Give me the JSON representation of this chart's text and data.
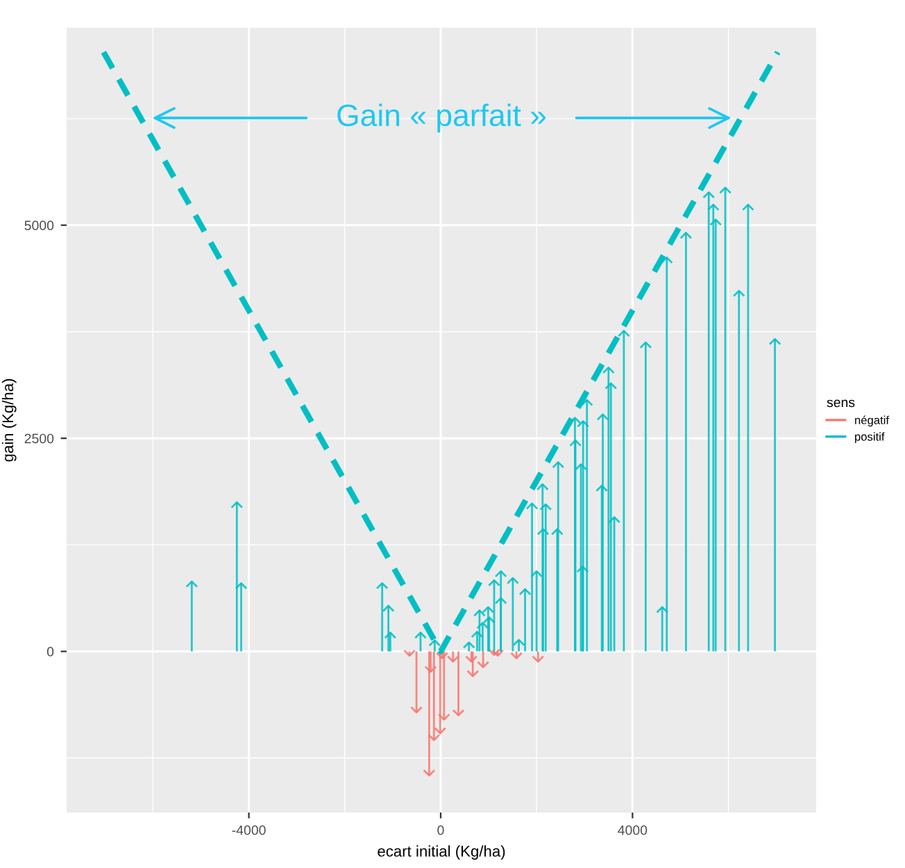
{
  "chart_data": {
    "type": "lollipop",
    "xlabel": "ecart initial (Kg/ha)",
    "ylabel": "gain (Kg/ha)",
    "legend_title": "sens",
    "annotations": [
      "Gain « parfait »"
    ],
    "xlim": [
      -7800,
      7830
    ],
    "ylim": [
      -1890,
      7316
    ],
    "xticks": [
      {
        "value": -6000,
        "label": null
      },
      -4000,
      {
        "value": -2000,
        "label": null
      },
      0,
      {
        "value": 2000,
        "label": null
      },
      4000,
      {
        "value": 6000,
        "label": null
      }
    ],
    "yticks": [
      {
        "value": -1250,
        "label": null
      },
      0,
      {
        "value": 1250,
        "label": null
      },
      2500,
      {
        "value": 3750,
        "label": null
      },
      5000,
      {
        "value": 6250,
        "label": null
      }
    ],
    "grid": true,
    "legend": "right",
    "series": [
      {
        "name": "négatif",
        "color": "#f8766d",
        "x": [
          -650,
          -505,
          -240,
          -210,
          -140,
          -10,
          30,
          70,
          257,
          370,
          640,
          670,
          885,
          1115,
          1190,
          1580,
          2030
        ],
        "values": [
          -50,
          -715,
          -1455,
          -240,
          -1040,
          -960,
          -80,
          -800,
          -120,
          -750,
          -120,
          -290,
          -185,
          -40,
          -50,
          -80,
          -120
        ]
      },
      {
        "name": "positif",
        "color": "#00bfc4",
        "x": [
          -5190,
          -4250,
          -4160,
          -1220,
          -1090,
          -1050,
          -420,
          -125,
          590,
          760,
          810,
          875,
          990,
          1010,
          1115,
          1255,
          1255,
          1505,
          1630,
          1760,
          1905,
          2000,
          2125,
          2135,
          2190,
          2430,
          2450,
          2800,
          2810,
          2925,
          2960,
          2970,
          3050,
          3360,
          3380,
          3500,
          3550,
          3620,
          3820,
          4275,
          4620,
          4715,
          5115,
          5590,
          5685,
          5735,
          5935,
          6220,
          6410,
          6970
        ],
        "values": [
          820,
          1750,
          800,
          800,
          535,
          220,
          220,
          130,
          105,
          230,
          480,
          335,
          520,
          400,
          835,
          940,
          625,
          860,
          135,
          730,
          1735,
          940,
          1960,
          1435,
          1725,
          1435,
          2220,
          2740,
          2475,
          2195,
          995,
          2700,
          2950,
          1945,
          2780,
          3330,
          3145,
          1575,
          3760,
          3625,
          520,
          4620,
          4910,
          5385,
          5240,
          5065,
          5440,
          4230,
          5240,
          3665
        ]
      },
      {
        "type": "line",
        "color": "#00bfc4",
        "line_style": "dashed",
        "x": [
          -7030,
          0,
          7030
        ],
        "values": [
          7030,
          0,
          7030
        ]
      }
    ]
  }
}
